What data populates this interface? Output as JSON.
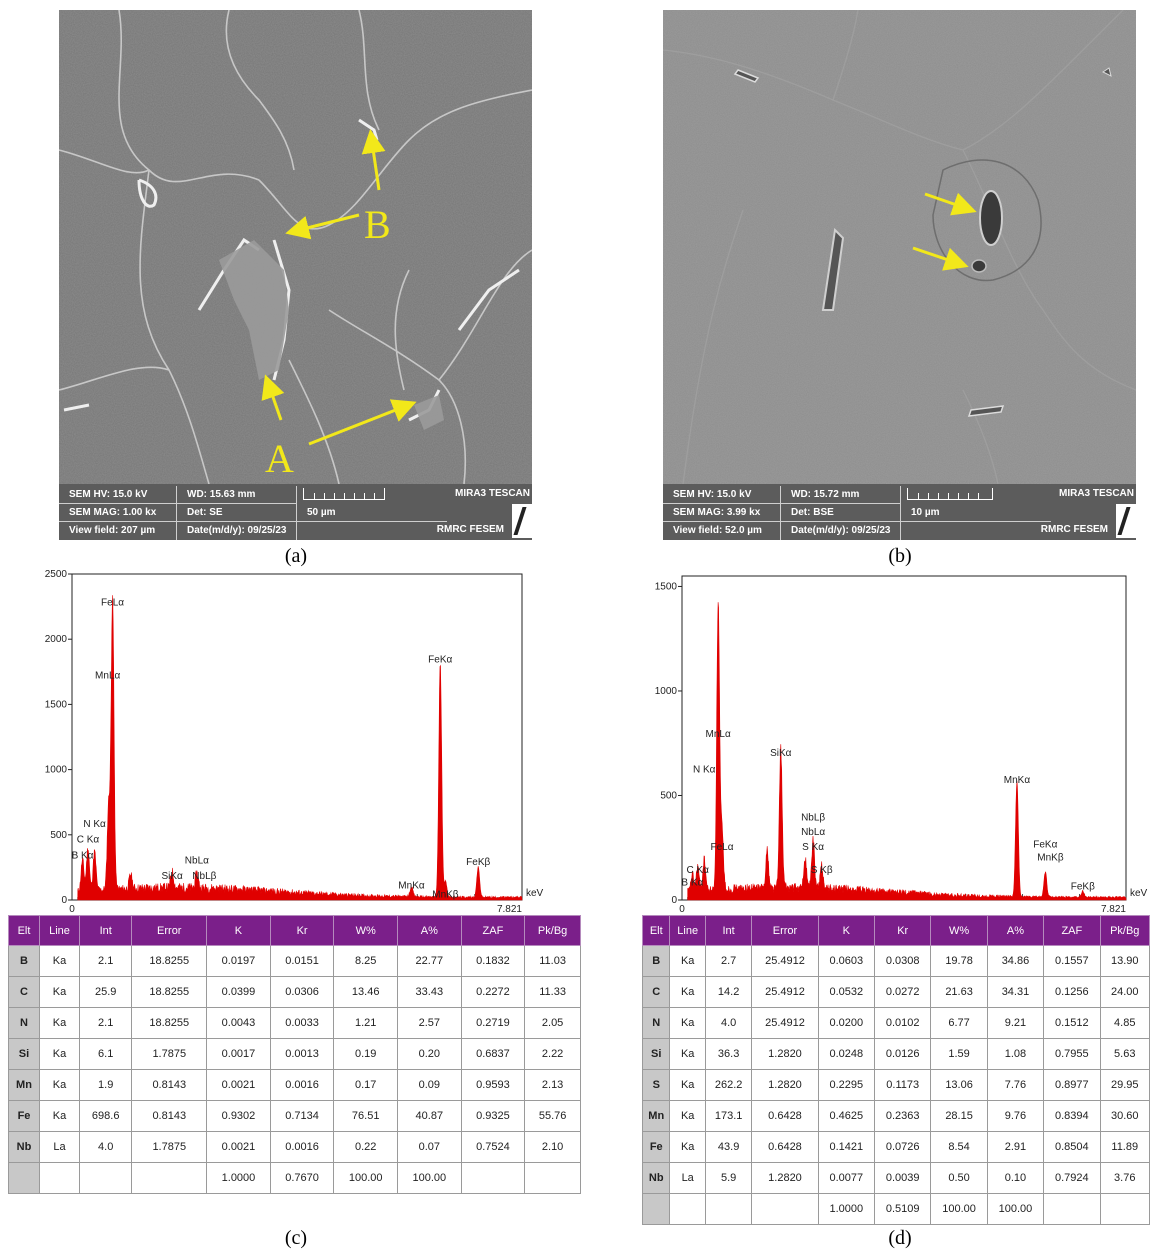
{
  "panels": {
    "a": {
      "caption": "(a)",
      "arrow_labels": [
        "A",
        "B"
      ],
      "info": {
        "hv": "SEM HV: 15.0 kV",
        "wd": "WD: 15.63 mm",
        "mag": "SEM MAG: 1.00 kx",
        "det": "Det: SE",
        "scale": "50 µm",
        "view": "View field: 207 µm",
        "date": "Date(m/d/y): 09/25/23",
        "brand": "MIRA3 TESCAN",
        "lab": "RMRC  FESEM"
      }
    },
    "b": {
      "caption": "(b)",
      "info": {
        "hv": "SEM HV: 15.0 kV",
        "wd": "WD: 15.72 mm",
        "mag": "SEM MAG: 3.99 kx",
        "det": "Det: BSE",
        "scale": "10 µm",
        "view": "View field: 52.0 µm",
        "date": "Date(m/d/y): 09/25/23",
        "brand": "MIRA3 TESCAN",
        "lab": "RMRC  FESEM"
      }
    },
    "c": {
      "caption": "(c)"
    },
    "d": {
      "caption": "(d)"
    }
  },
  "chart_data": [
    {
      "type": "line",
      "panel": "c",
      "xlabel": "keV",
      "x_end_label": "7.821",
      "xlim": [
        0,
        7.821
      ],
      "ylim": [
        0,
        2500
      ],
      "yticks": [
        0,
        500,
        1000,
        1500,
        2000,
        2500
      ],
      "peaks": [
        {
          "x": 0.183,
          "y": 240
        },
        {
          "x": 0.277,
          "y": 330
        },
        {
          "x": 0.392,
          "y": 300
        },
        {
          "x": 0.637,
          "y": 650
        },
        {
          "x": 0.705,
          "y": 2230
        },
        {
          "x": 1.02,
          "y": 110
        },
        {
          "x": 1.74,
          "y": 125
        },
        {
          "x": 2.17,
          "y": 115
        },
        {
          "x": 5.9,
          "y": 80
        },
        {
          "x": 6.4,
          "y": 1790
        },
        {
          "x": 6.49,
          "y": 120
        },
        {
          "x": 7.06,
          "y": 230
        }
      ],
      "annotations": [
        {
          "text": "FeLα",
          "x": 0.705,
          "y": 2260
        },
        {
          "text": "MnLα",
          "x": 0.62,
          "y": 1700
        },
        {
          "text": "N Kα",
          "x": 0.392,
          "y": 560
        },
        {
          "text": "C Kα",
          "x": 0.277,
          "y": 440
        },
        {
          "text": "B Kα",
          "x": 0.183,
          "y": 320
        },
        {
          "text": "NbLα",
          "x": 2.17,
          "y": 280
        },
        {
          "text": "SiKα",
          "x": 1.74,
          "y": 160
        },
        {
          "text": "NbLβ",
          "x": 2.3,
          "y": 160
        },
        {
          "text": "FeKα",
          "x": 6.4,
          "y": 1820
        },
        {
          "text": "FeKβ",
          "x": 7.06,
          "y": 270
        },
        {
          "text": "MnKα",
          "x": 5.9,
          "y": 90
        },
        {
          "text": "MnKβ",
          "x": 6.49,
          "y": 20
        }
      ]
    },
    {
      "type": "line",
      "panel": "d",
      "xlabel": "keV",
      "x_end_label": "7.821",
      "xlim": [
        0,
        7.821
      ],
      "ylim": [
        0,
        1550
      ],
      "yticks": [
        0,
        500,
        1000,
        1500
      ],
      "peaks": [
        {
          "x": 0.183,
          "y": 80
        },
        {
          "x": 0.277,
          "y": 120
        },
        {
          "x": 0.392,
          "y": 150
        },
        {
          "x": 0.637,
          "y": 1380
        },
        {
          "x": 0.705,
          "y": 280
        },
        {
          "x": 1.74,
          "y": 670
        },
        {
          "x": 1.5,
          "y": 180
        },
        {
          "x": 2.17,
          "y": 140
        },
        {
          "x": 2.31,
          "y": 230
        },
        {
          "x": 2.46,
          "y": 110
        },
        {
          "x": 5.9,
          "y": 550
        },
        {
          "x": 6.4,
          "y": 120
        },
        {
          "x": 7.06,
          "y": 30
        }
      ],
      "annotations": [
        {
          "text": "MnLα",
          "x": 0.637,
          "y": 780
        },
        {
          "text": "N Kα",
          "x": 0.392,
          "y": 610
        },
        {
          "text": "SiKα",
          "x": 1.74,
          "y": 690
        },
        {
          "text": "NbLβ",
          "x": 2.31,
          "y": 380
        },
        {
          "text": "NbLα",
          "x": 2.31,
          "y": 310
        },
        {
          "text": "S Kα",
          "x": 2.31,
          "y": 240
        },
        {
          "text": "FeLα",
          "x": 0.705,
          "y": 240
        },
        {
          "text": "C Kα",
          "x": 0.277,
          "y": 130
        },
        {
          "text": "B Kα",
          "x": 0.183,
          "y": 70
        },
        {
          "text": "S Kβ",
          "x": 2.46,
          "y": 130
        },
        {
          "text": "MnKα",
          "x": 5.9,
          "y": 560
        },
        {
          "text": "FeKα",
          "x": 6.4,
          "y": 250
        },
        {
          "text": "MnKβ",
          "x": 6.49,
          "y": 190
        },
        {
          "text": "FeKβ",
          "x": 7.06,
          "y": 50
        }
      ]
    }
  ],
  "tables": {
    "headers": [
      "Elt",
      "Line",
      "Int",
      "Error",
      "K",
      "Kr",
      "W%",
      "A%",
      "ZAF",
      "Pk/Bg"
    ],
    "c": {
      "rows": [
        [
          "B",
          "Ka",
          "2.1",
          "18.8255",
          "0.0197",
          "0.0151",
          "8.25",
          "22.77",
          "0.1832",
          "11.03"
        ],
        [
          "C",
          "Ka",
          "25.9",
          "18.8255",
          "0.0399",
          "0.0306",
          "13.46",
          "33.43",
          "0.2272",
          "11.33"
        ],
        [
          "N",
          "Ka",
          "2.1",
          "18.8255",
          "0.0043",
          "0.0033",
          "1.21",
          "2.57",
          "0.2719",
          "2.05"
        ],
        [
          "Si",
          "Ka",
          "6.1",
          "1.7875",
          "0.0017",
          "0.0013",
          "0.19",
          "0.20",
          "0.6837",
          "2.22"
        ],
        [
          "Mn",
          "Ka",
          "1.9",
          "0.8143",
          "0.0021",
          "0.0016",
          "0.17",
          "0.09",
          "0.9593",
          "2.13"
        ],
        [
          "Fe",
          "Ka",
          "698.6",
          "0.8143",
          "0.9302",
          "0.7134",
          "76.51",
          "40.87",
          "0.9325",
          "55.76"
        ],
        [
          "Nb",
          "La",
          "4.0",
          "1.7875",
          "0.0021",
          "0.0016",
          "0.22",
          "0.07",
          "0.7524",
          "2.10"
        ]
      ],
      "totals": [
        "",
        "",
        "",
        "",
        "1.0000",
        "0.7670",
        "100.00",
        "100.00",
        "",
        ""
      ]
    },
    "d": {
      "rows": [
        [
          "B",
          "Ka",
          "2.7",
          "25.4912",
          "0.0603",
          "0.0308",
          "19.78",
          "34.86",
          "0.1557",
          "13.90"
        ],
        [
          "C",
          "Ka",
          "14.2",
          "25.4912",
          "0.0532",
          "0.0272",
          "21.63",
          "34.31",
          "0.1256",
          "24.00"
        ],
        [
          "N",
          "Ka",
          "4.0",
          "25.4912",
          "0.0200",
          "0.0102",
          "6.77",
          "9.21",
          "0.1512",
          "4.85"
        ],
        [
          "Si",
          "Ka",
          "36.3",
          "1.2820",
          "0.0248",
          "0.0126",
          "1.59",
          "1.08",
          "0.7955",
          "5.63"
        ],
        [
          "S",
          "Ka",
          "262.2",
          "1.2820",
          "0.2295",
          "0.1173",
          "13.06",
          "7.76",
          "0.8977",
          "29.95"
        ],
        [
          "Mn",
          "Ka",
          "173.1",
          "0.6428",
          "0.4625",
          "0.2363",
          "28.15",
          "9.76",
          "0.8394",
          "30.60"
        ],
        [
          "Fe",
          "Ka",
          "43.9",
          "0.6428",
          "0.1421",
          "0.0726",
          "8.54",
          "2.91",
          "0.8504",
          "11.89"
        ],
        [
          "Nb",
          "La",
          "5.9",
          "1.2820",
          "0.0077",
          "0.0039",
          "0.50",
          "0.10",
          "0.7924",
          "3.76"
        ]
      ],
      "totals": [
        "",
        "",
        "",
        "",
        "1.0000",
        "0.5109",
        "100.00",
        "100.00",
        "",
        ""
      ]
    }
  },
  "colors": {
    "spectrum": "#e00000",
    "header": "#7b1f8a",
    "arrow": "#f2e81a"
  }
}
